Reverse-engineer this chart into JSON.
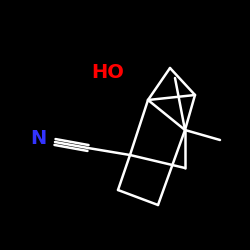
{
  "bg_color": "#000000",
  "bond_color": "#ffffff",
  "ho_color": "#ff0000",
  "n_color": "#3333ff",
  "ho_label": "HO",
  "n_label": "N",
  "figsize": [
    2.5,
    2.5
  ],
  "dpi": 100,
  "lw": 1.8,
  "ho_fontsize": 14,
  "n_fontsize": 14
}
